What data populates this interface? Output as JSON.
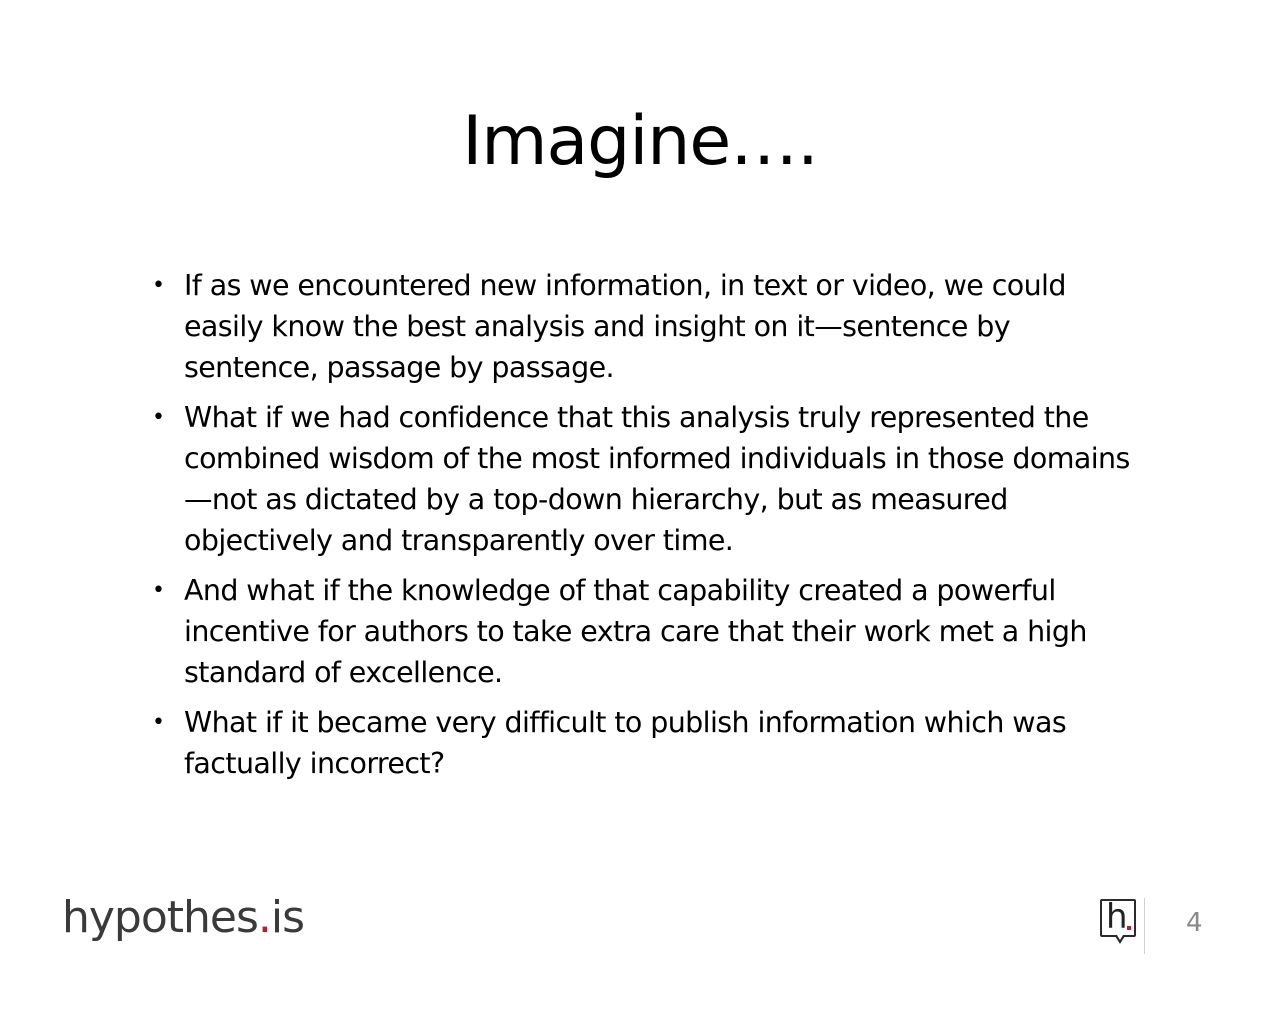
{
  "slide": {
    "title": "Imagine….",
    "bullets": [
      "If as we encountered new information, in text or video, we could easily know the best analysis and insight on it—sentence by sentence, passage by passage.",
      "What if we had confidence that this analysis truly represented the combined wisdom of the most informed individuals in those domains—not as dictated by a top-down hierarchy, but as measured objectively and transparently over time.",
      "And what if the knowledge of that capability created a powerful incentive for authors to take extra care that their work met a high standard of excellence.",
      "What if it became very difficult to publish information which was factually incorrect?"
    ],
    "bullet_symbol": "•"
  },
  "footer": {
    "logo_main": "hypothes",
    "logo_dot": ".",
    "logo_suffix": "is",
    "icon_letter": "h",
    "page_number": "4"
  },
  "colors": {
    "accent": "#bd1c2b",
    "text": "#000000",
    "logo": "#3a3a3a",
    "page_number": "#8a8a8a"
  }
}
